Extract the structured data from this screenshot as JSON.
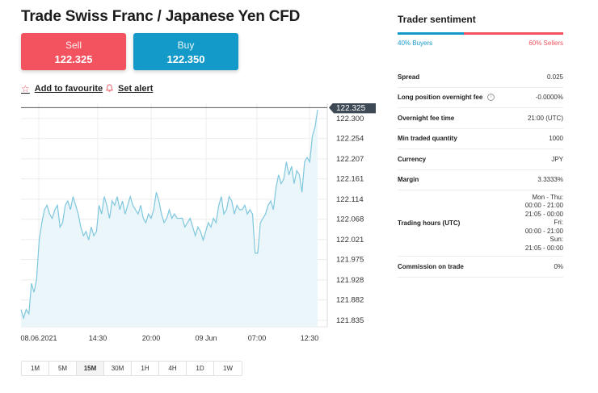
{
  "title": "Trade Swiss Franc / Japanese Yen CFD",
  "sell": {
    "label": "Sell",
    "price": "122.325"
  },
  "buy": {
    "label": "Buy",
    "price": "122.350"
  },
  "actions": {
    "favourite": "Add to favourite",
    "alert": "Set alert"
  },
  "chart_data": {
    "type": "area",
    "current_price_label": "122.325",
    "y_ticks": [
      "122.300",
      "122.254",
      "122.207",
      "122.161",
      "122.114",
      "122.068",
      "122.021",
      "121.975",
      "121.928",
      "121.882",
      "121.835"
    ],
    "x_ticks": [
      "08.06.2021",
      "14:30",
      "20:00",
      "09 Jun",
      "07:00",
      "12:30"
    ],
    "ylim": [
      121.82,
      122.335
    ],
    "values": [
      121.86,
      121.84,
      121.86,
      121.85,
      121.92,
      121.9,
      121.93,
      122.02,
      122.06,
      122.09,
      122.1,
      122.08,
      122.07,
      122.09,
      122.1,
      122.05,
      122.06,
      122.1,
      122.11,
      122.09,
      122.12,
      122.1,
      122.08,
      122.05,
      122.03,
      122.04,
      122.02,
      122.05,
      122.03,
      122.04,
      122.1,
      122.08,
      122.12,
      122.1,
      122.07,
      122.11,
      122.1,
      122.12,
      122.09,
      122.11,
      122.08,
      122.1,
      122.12,
      122.1,
      122.09,
      122.08,
      122.1,
      122.07,
      122.06,
      122.08,
      122.07,
      122.09,
      122.13,
      122.11,
      122.08,
      122.06,
      122.07,
      122.09,
      122.07,
      122.08,
      122.07,
      122.07,
      122.07,
      122.05,
      122.06,
      122.07,
      122.05,
      122.03,
      122.05,
      122.04,
      122.02,
      122.04,
      122.06,
      122.05,
      122.07,
      122.06,
      122.1,
      122.12,
      122.08,
      122.09,
      122.12,
      122.11,
      122.08,
      122.1,
      122.09,
      122.09,
      122.1,
      122.08,
      122.09,
      122.08,
      121.99,
      121.99,
      122.06,
      122.07,
      122.08,
      122.1,
      122.11,
      122.09,
      122.14,
      122.17,
      122.15,
      122.16,
      122.2,
      122.17,
      122.19,
      122.15,
      122.18,
      122.17,
      122.13,
      122.2,
      122.21,
      122.2,
      122.26,
      122.28,
      122.32
    ],
    "grid": true
  },
  "timeframes": [
    {
      "label": "1M",
      "active": false
    },
    {
      "label": "5M",
      "active": false
    },
    {
      "label": "15M",
      "active": true
    },
    {
      "label": "30M",
      "active": false
    },
    {
      "label": "1H",
      "active": false
    },
    {
      "label": "4H",
      "active": false
    },
    {
      "label": "1D",
      "active": false
    },
    {
      "label": "1W",
      "active": false
    }
  ],
  "sentiment": {
    "title": "Trader sentiment",
    "buyers": "40% Buyers",
    "sellers": "60% Sellers",
    "buyers_fraction": 0.4,
    "buyer_color": "#149ac9",
    "seller_color": "#f3525f"
  },
  "stats": [
    {
      "key": "Spread",
      "value": [
        "0.025"
      ]
    },
    {
      "key": "Long position overnight fee",
      "value": [
        "-0.0000%"
      ],
      "info": true
    },
    {
      "key": "Overnight fee time",
      "value": [
        "21:00 (UTC)"
      ]
    },
    {
      "key": "Min traded quantity",
      "value": [
        "1000"
      ]
    },
    {
      "key": "Currency",
      "value": [
        "JPY"
      ]
    },
    {
      "key": "Margin",
      "value": [
        "3.3333%"
      ]
    },
    {
      "key": "Trading hours (UTC)",
      "value": [
        "Mon - Thu:",
        "00:00 - 21:00",
        "21:05 - 00:00",
        "Fri:",
        "00:00 - 21:00",
        "Sun:",
        "21:05 - 00:00"
      ]
    },
    {
      "key": "Commission on trade",
      "value": [
        "0%"
      ]
    }
  ]
}
